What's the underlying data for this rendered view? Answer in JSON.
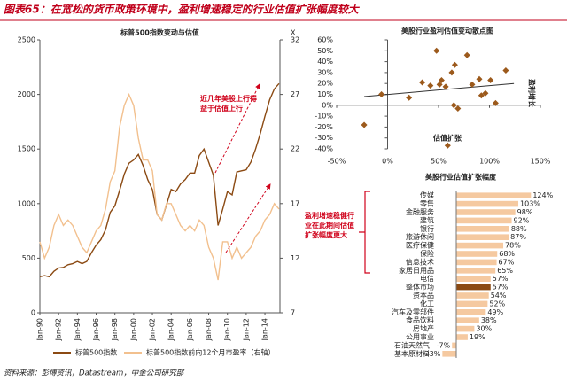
{
  "title": "图表65：在宽松的货币政策环境中，盈利增速稳定的行业估值扩张幅度较大",
  "source": "资料来源：彭博资讯，Datastream，中金公司研究部",
  "chart_data": [
    {
      "type": "line",
      "title": "标普500指数变动与估值",
      "annotation": "近几年美股上行得益于估值上行",
      "x": [
        1990,
        1990.5,
        1991,
        1991.5,
        1992,
        1992.5,
        1993,
        1993.5,
        1994,
        1994.5,
        1995,
        1995.5,
        1996,
        1996.5,
        1997,
        1997.5,
        1998,
        1998.5,
        1999,
        1999.5,
        2000,
        2000.5,
        2001,
        2001.5,
        2002,
        2002.5,
        2003,
        2003.5,
        2004,
        2004.5,
        2005,
        2005.5,
        2006,
        2006.5,
        2007,
        2007.5,
        2008,
        2008.5,
        2009,
        2009.5,
        2010,
        2010.5,
        2011,
        2011.5,
        2012,
        2012.5,
        2013,
        2013.5,
        2014,
        2014.5,
        2015,
        2015.5
      ],
      "xlim": [
        1990,
        2015.6
      ],
      "xticks": [
        {
          "value": 1990,
          "label": "Jan-90"
        },
        {
          "value": 1992,
          "label": "Jan-92"
        },
        {
          "value": 1994,
          "label": "Jan-94"
        },
        {
          "value": 1996,
          "label": "Jan-96"
        },
        {
          "value": 1998,
          "label": "Jan-98"
        },
        {
          "value": 2000,
          "label": "Jan-00"
        },
        {
          "value": 2002,
          "label": "Jan-02"
        },
        {
          "value": 2004,
          "label": "Jan-04"
        },
        {
          "value": 2006,
          "label": "Jan-06"
        },
        {
          "value": 2008,
          "label": "Jan-08"
        },
        {
          "value": 2010,
          "label": "Jan-10"
        },
        {
          "value": 2012,
          "label": "Jan-12"
        },
        {
          "value": 2014,
          "label": "Jan-14"
        }
      ],
      "ylim": [
        0,
        2500
      ],
      "yticks": [
        0,
        500,
        1000,
        1500,
        2000,
        2500
      ],
      "y2lim": [
        7,
        32
      ],
      "y2ticks": [
        7,
        12,
        17,
        22,
        27,
        32
      ],
      "y2label": "X",
      "series": [
        {
          "name": "标普500指数",
          "color": "#8b4a13",
          "values": [
            330,
            340,
            330,
            380,
            410,
            415,
            440,
            450,
            470,
            450,
            470,
            550,
            620,
            670,
            760,
            920,
            980,
            1120,
            1270,
            1370,
            1400,
            1450,
            1350,
            1220,
            1130,
            900,
            850,
            990,
            1130,
            1110,
            1180,
            1220,
            1280,
            1280,
            1440,
            1500,
            1380,
            1260,
            800,
            950,
            1110,
            1080,
            1290,
            1300,
            1310,
            1380,
            1500,
            1640,
            1800,
            1950,
            2050,
            2100
          ]
        },
        {
          "name": "标普500指数前向12个月市盈率（右轴）",
          "color": "#f2c08e",
          "axis": "y2",
          "values": [
            13.5,
            12,
            13,
            15,
            16,
            15,
            15.5,
            15,
            14,
            13,
            12.5,
            13.5,
            14.5,
            15,
            16.5,
            19,
            20,
            24,
            26,
            27,
            26,
            23,
            21,
            21,
            20,
            16,
            15.5,
            17,
            17,
            16,
            15,
            14.5,
            15,
            14.5,
            15.5,
            15,
            13,
            12,
            10,
            13.5,
            13.5,
            12,
            13,
            12,
            12.5,
            13,
            14,
            14.5,
            15.5,
            16,
            17,
            16.5
          ]
        }
      ]
    },
    {
      "type": "scatter",
      "title": "美股行业盈利估值变动散点图",
      "xlabel": "估值扩张",
      "ylabel": "盈利增长",
      "xlim": [
        -50,
        150
      ],
      "xticks": [
        {
          "value": -50,
          "label": "-50%"
        },
        {
          "value": 0,
          "label": "0%"
        },
        {
          "value": 50,
          "label": "50%"
        },
        {
          "value": 100,
          "label": "100%"
        },
        {
          "value": 150,
          "label": "150%"
        }
      ],
      "ylim": [
        -40,
        60
      ],
      "yticks": [
        {
          "value": -40,
          "label": "-40%"
        },
        {
          "value": -30,
          "label": "-30%"
        },
        {
          "value": -20,
          "label": "-20%"
        },
        {
          "value": -10,
          "label": "-10%"
        },
        {
          "value": 0,
          "label": "0%"
        },
        {
          "value": 10,
          "label": "10%"
        },
        {
          "value": 20,
          "label": "20%"
        },
        {
          "value": 30,
          "label": "30%"
        },
        {
          "value": 40,
          "label": "40%"
        },
        {
          "value": 50,
          "label": "50%"
        },
        {
          "value": 60,
          "label": "60%"
        }
      ],
      "color": "#9c5a1c",
      "x": [
        -23,
        -6,
        21,
        34,
        42,
        48,
        51,
        53,
        57,
        63,
        66,
        69,
        65,
        78,
        83,
        90,
        92,
        96,
        101,
        106,
        116,
        59
      ],
      "values": [
        -18,
        10,
        7,
        21,
        18,
        50,
        19,
        23,
        17,
        30,
        37,
        -3,
        0,
        46,
        19,
        24,
        9,
        11,
        23,
        2,
        32,
        -37
      ],
      "trendline": {
        "color": "#333333",
        "x": [
          -23,
          124
        ],
        "values": [
          8,
          20
        ]
      }
    },
    {
      "type": "hbar",
      "title": "美股行业估值扩张幅度",
      "annotation": "盈利增速稳健行业在此期间估值扩张幅度更大",
      "categories": [
        "传媒",
        "零售",
        "金融服务",
        "建筑",
        "银行",
        "旅游休闲",
        "医疗保健",
        "保险",
        "信息技术",
        "家居日用品",
        "电信",
        "整体市场",
        "资本品",
        "化工",
        "汽车及零部件",
        "食品饮料",
        "房地产",
        "公用事业",
        "石油天然气",
        "基本原材料"
      ],
      "values": [
        124,
        103,
        98,
        92,
        88,
        87,
        78,
        68,
        67,
        65,
        57,
        57,
        54,
        52,
        49,
        38,
        30,
        19,
        -7,
        -23
      ],
      "value_labels": [
        "124%",
        "103%",
        "98%",
        "92%",
        "88%",
        "87%",
        "78%",
        "68%",
        "67%",
        "65%",
        "57%",
        "57%",
        "54%",
        "52%",
        "49%",
        "38%",
        "30%",
        "19%",
        "-7%",
        "-23%"
      ],
      "colors": [
        "#f5c9a0",
        "#f5c9a0",
        "#f5c9a0",
        "#f5c9a0",
        "#f5c9a0",
        "#f5c9a0",
        "#f5c9a0",
        "#f5c9a0",
        "#f5c9a0",
        "#f5c9a0",
        "#f5c9a0",
        "#8b4a13",
        "#f5c9a0",
        "#f5c9a0",
        "#f5c9a0",
        "#f5c9a0",
        "#f5c9a0",
        "#f5c9a0",
        "#f5c9a0",
        "#f5c9a0"
      ]
    }
  ]
}
